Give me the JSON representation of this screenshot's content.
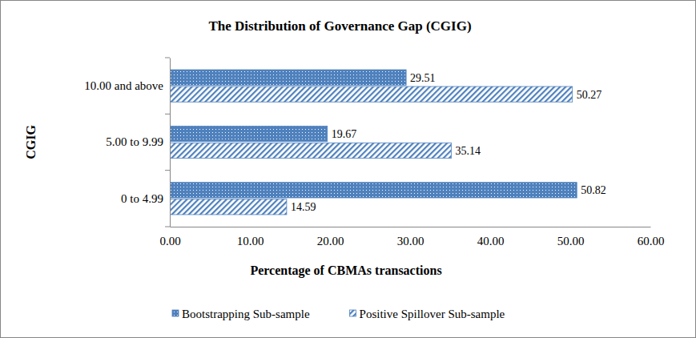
{
  "chart_data": {
    "type": "bar",
    "orientation": "horizontal",
    "title": "The Distribution of Governance Gap (CGIG)",
    "x_label": "Percentage of CBMAs transactions",
    "y_label": "CGIG",
    "categories": [
      "0 to 4.99",
      "5.00 to 9.99",
      "10.00 and above"
    ],
    "series": [
      {
        "name": "Bootstrapping Sub-sample",
        "color": "#4f81bd",
        "values": [
          50.82,
          19.67,
          29.51
        ]
      },
      {
        "name": "Positive Spillover Sub-sample",
        "color": "#4f81bd",
        "values": [
          14.59,
          35.14,
          50.27
        ]
      }
    ],
    "xlim": [
      0,
      60
    ],
    "xticks": [
      {
        "value": 0,
        "label": "0.00"
      },
      {
        "value": 10,
        "label": "10.00"
      },
      {
        "value": 20,
        "label": "20.00"
      },
      {
        "value": 30,
        "label": "30.00"
      },
      {
        "value": 40,
        "label": "40.00"
      },
      {
        "value": 50,
        "label": "50.00"
      },
      {
        "value": 60,
        "label": "60.00"
      }
    ],
    "grid": false,
    "legend": "bottom",
    "data_labels": true
  }
}
